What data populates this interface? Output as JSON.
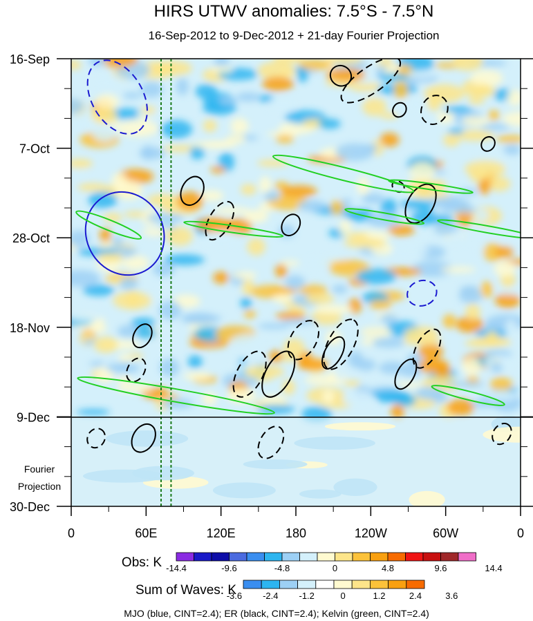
{
  "chart_data": {
    "type": "heatmap",
    "title": "HIRS UTWV anomalies: 7.5°S - 7.5°N",
    "subtitle": "16-Sep-2012 to 9-Dec-2012 + 21-day Fourier Projection",
    "x_label_ticks": [
      "0",
      "60E",
      "120E",
      "180",
      "120W",
      "60W",
      "0"
    ],
    "x_tick_longitudes": [
      0,
      60,
      120,
      180,
      240,
      300,
      360
    ],
    "xlim": [
      0,
      360
    ],
    "y_label_ticks": [
      "16-Sep",
      "7-Oct",
      "28-Oct",
      "18-Nov",
      "9-Dec",
      "30-Dec"
    ],
    "y_tick_days": [
      0,
      21,
      42,
      63,
      84,
      105
    ],
    "ylim_days": [
      0,
      105
    ],
    "observation_end_label": "9-Dec",
    "projection_label": [
      "Fourier",
      "Projection"
    ],
    "reference_longitudes_dashed": [
      72,
      80
    ],
    "obs_colorbar": {
      "label": "Obs: K",
      "ticks": [
        "-14.4",
        "-9.6",
        "-4.8",
        "0",
        "4.8",
        "9.6",
        "14.4"
      ],
      "colors": [
        "#8a2be2",
        "#1a1ac8",
        "#0e0ea8",
        "#4b6be0",
        "#3a8ef0",
        "#2db5f0",
        "#9dd0f5",
        "#d4f0fb",
        "#fffad0",
        "#fde58a",
        "#fcc23a",
        "#f9a010",
        "#f76b00",
        "#f01414",
        "#c81010",
        "#a0282a",
        "#f06ec8"
      ]
    },
    "waves_colorbar": {
      "label": "Sum of Waves: K",
      "ticks": [
        "-3.6",
        "-2.4",
        "-1.2",
        "0",
        "1.2",
        "2.4",
        "3.6"
      ],
      "colors": [
        "#3a8ef0",
        "#2db5f0",
        "#9dd0f5",
        "#d4f0fb",
        "#ffffff",
        "#fffad0",
        "#fde58a",
        "#fcc23a",
        "#f9a010",
        "#f76b00"
      ]
    },
    "legend_note": "MJO (blue, CINT=2.4); ER (black, CINT=2.4); Kelvin (green, CINT=2.4)",
    "series": [
      {
        "name": "MJO",
        "color": "#1a1ad0",
        "contours": [
          {
            "lon": 37,
            "day": 9,
            "rx": 32,
            "ry": 6,
            "angle": 60,
            "dashed": true
          },
          {
            "lon": 43,
            "day": 41,
            "rx": 34,
            "ry": 9,
            "angle": 62,
            "dashed": false
          },
          {
            "lon": 281,
            "day": 55,
            "rx": 10,
            "ry": 3.5,
            "angle": 70,
            "dashed": true
          }
        ]
      },
      {
        "name": "ER",
        "color": "#000000",
        "contours": [
          {
            "lon": 216,
            "day": 4,
            "rx": 8,
            "ry": 2.5,
            "angle": -55,
            "dashed": false
          },
          {
            "lon": 240,
            "day": 5,
            "rx": 28,
            "ry": 3,
            "angle": -35,
            "dashed": true
          },
          {
            "lon": 291,
            "day": 12,
            "rx": 12,
            "ry": 3,
            "angle": -60,
            "dashed": true
          },
          {
            "lon": 263,
            "day": 12,
            "rx": 6,
            "ry": 1.5,
            "angle": -55,
            "dashed": false
          },
          {
            "lon": 334,
            "day": 20,
            "rx": 6,
            "ry": 1.5,
            "angle": -55,
            "dashed": false
          },
          {
            "lon": 97,
            "day": 31,
            "rx": 12,
            "ry": 2.5,
            "angle": -65,
            "dashed": false
          },
          {
            "lon": 119,
            "day": 38,
            "rx": 17,
            "ry": 2.5,
            "angle": -60,
            "dashed": true
          },
          {
            "lon": 176,
            "day": 39,
            "rx": 9,
            "ry": 2,
            "angle": -60,
            "dashed": false
          },
          {
            "lon": 262,
            "day": 30,
            "rx": 4,
            "ry": 1.5,
            "angle": -55,
            "dashed": true
          },
          {
            "lon": 280,
            "day": 34,
            "rx": 17,
            "ry": 3,
            "angle": -60,
            "dashed": false
          },
          {
            "lon": 186,
            "day": 66,
            "rx": 17,
            "ry": 3,
            "angle": -60,
            "dashed": true
          },
          {
            "lon": 216,
            "day": 67,
            "rx": 22,
            "ry": 3,
            "angle": -62,
            "dashed": true
          },
          {
            "lon": 166,
            "day": 74,
            "rx": 20,
            "ry": 3,
            "angle": -62,
            "dashed": false
          },
          {
            "lon": 210,
            "day": 69,
            "rx": 14,
            "ry": 2,
            "angle": -62,
            "dashed": false
          },
          {
            "lon": 143,
            "day": 74,
            "rx": 20,
            "ry": 3,
            "angle": -62,
            "dashed": true
          },
          {
            "lon": 268,
            "day": 74,
            "rx": 13,
            "ry": 2,
            "angle": -62,
            "dashed": false
          },
          {
            "lon": 285,
            "day": 68,
            "rx": 17,
            "ry": 2.5,
            "angle": -62,
            "dashed": true
          },
          {
            "lon": 57,
            "day": 65,
            "rx": 10,
            "ry": 2,
            "angle": -62,
            "dashed": false
          },
          {
            "lon": 52,
            "day": 73,
            "rx": 10,
            "ry": 2,
            "angle": -62,
            "dashed": true
          },
          {
            "lon": 20,
            "day": 89,
            "rx": 8,
            "ry": 2,
            "angle": -60,
            "dashed": true
          },
          {
            "lon": 58,
            "day": 89,
            "rx": 12,
            "ry": 2.5,
            "angle": -60,
            "dashed": false
          },
          {
            "lon": 160,
            "day": 90,
            "rx": 14,
            "ry": 2.5,
            "angle": -60,
            "dashed": true
          },
          {
            "lon": 345,
            "day": 88,
            "rx": 9,
            "ry": 2,
            "angle": -55,
            "dashed": true
          }
        ]
      },
      {
        "name": "Kelvin",
        "color": "#22d022",
        "contours": [
          {
            "lon": 30,
            "day": 39,
            "rx": 28,
            "ry": 1.2,
            "angle": 22,
            "dashed": false
          },
          {
            "lon": 130,
            "day": 40,
            "rx": 40,
            "ry": 0.8,
            "angle": 8,
            "dashed": false
          },
          {
            "lon": 218,
            "day": 27,
            "rx": 58,
            "ry": 1.5,
            "angle": 14,
            "dashed": false
          },
          {
            "lon": 288,
            "day": 30,
            "rx": 34,
            "ry": 0.7,
            "angle": 8,
            "dashed": false
          },
          {
            "lon": 251,
            "day": 37,
            "rx": 32,
            "ry": 0.8,
            "angle": 10,
            "dashed": false
          },
          {
            "lon": 333,
            "day": 40,
            "rx": 40,
            "ry": 0.8,
            "angle": 10,
            "dashed": false
          },
          {
            "lon": 84,
            "day": 79,
            "rx": 80,
            "ry": 1.5,
            "angle": 10,
            "dashed": false
          },
          {
            "lon": 318,
            "day": 79,
            "rx": 30,
            "ry": 1,
            "angle": 14,
            "dashed": false
          }
        ]
      }
    ]
  }
}
